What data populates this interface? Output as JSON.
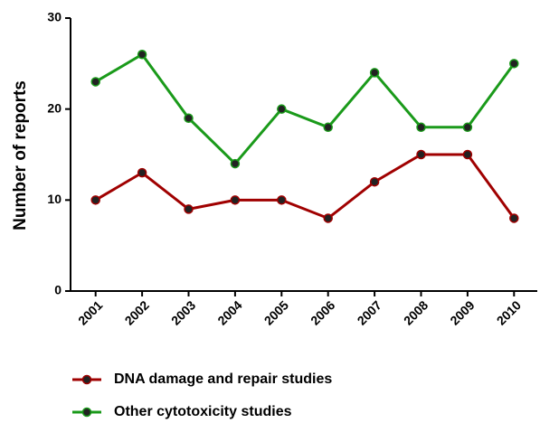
{
  "chart_data": {
    "type": "line",
    "y_label": "Number of reports",
    "categories": [
      "2001",
      "2002",
      "2003",
      "2004",
      "2005",
      "2006",
      "2007",
      "2008",
      "2009",
      "2010"
    ],
    "series": [
      {
        "name": "DNA damage and repair studies",
        "color": "#a00000",
        "values": [
          10,
          13,
          9,
          10,
          10,
          8,
          12,
          15,
          15,
          8
        ]
      },
      {
        "name": "Other cytotoxicity studies",
        "color": "#1a9a1a",
        "values": [
          23,
          26,
          19,
          14,
          20,
          18,
          24,
          18,
          18,
          25
        ]
      }
    ],
    "ylim": [
      0,
      30
    ],
    "yticks": [
      0,
      10,
      20,
      30
    ]
  }
}
